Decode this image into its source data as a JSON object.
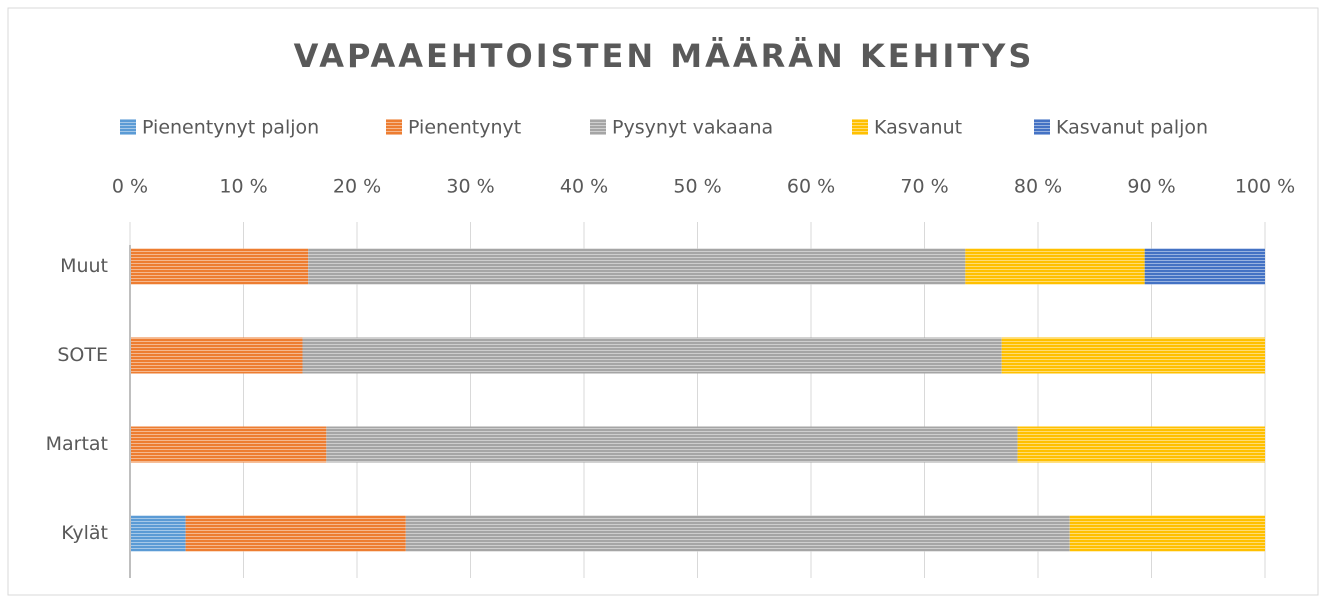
{
  "chart_data": {
    "type": "stacked_bar_horizontal",
    "title": "VAPAAEHTOISTEN MÄÄRÄN KEHITYS",
    "categories": [
      "Muut",
      "SOTE",
      "Martat",
      "Kylät"
    ],
    "series": [
      {
        "name": "Pienentynyt paljon",
        "color": "#5b9bd5",
        "values": [
          0,
          0,
          0,
          4.9
        ]
      },
      {
        "name": "Pienentynyt",
        "color": "#ed7d31",
        "values": [
          15.7,
          15.2,
          17.3,
          19.4
        ]
      },
      {
        "name": "Pysynyt vakaana",
        "color": "#a5a5a5",
        "values": [
          57.9,
          61.6,
          60.9,
          58.5
        ]
      },
      {
        "name": "Kasvanut",
        "color": "#ffc000",
        "values": [
          15.8,
          23.2,
          21.8,
          17.2
        ]
      },
      {
        "name": "Kasvanut paljon",
        "color": "#4472c4",
        "values": [
          10.6,
          0,
          0,
          0
        ]
      }
    ],
    "xlim": [
      0,
      100
    ],
    "xticks": [
      {
        "value": 0,
        "label": "0 %"
      },
      {
        "value": 10,
        "label": "10 %"
      },
      {
        "value": 20,
        "label": "20 %"
      },
      {
        "value": 30,
        "label": "30 %"
      },
      {
        "value": 40,
        "label": "40 %"
      },
      {
        "value": 50,
        "label": "50 %"
      },
      {
        "value": 60,
        "label": "60 %"
      },
      {
        "value": 70,
        "label": "70 %"
      },
      {
        "value": 80,
        "label": "80 %"
      },
      {
        "value": 90,
        "label": "90 %"
      },
      {
        "value": 100,
        "label": "100 %"
      }
    ],
    "legend": "top"
  }
}
